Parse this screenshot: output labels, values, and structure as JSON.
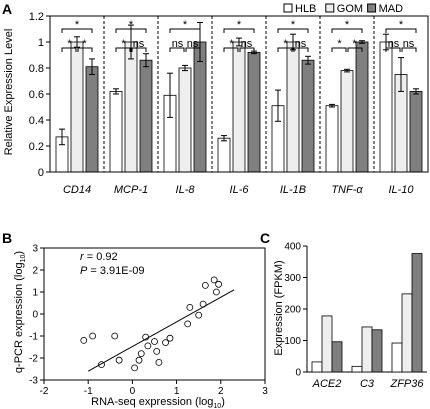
{
  "panels": [
    {
      "label": "A",
      "chart_data": {
        "type": "bar",
        "ylabel": "Relative Expression Level",
        "ylim": [
          0,
          1.2
        ],
        "yticks": [
          "0",
          "0.2",
          "0.4",
          "0.6",
          "0.8",
          "1",
          "1.2"
        ],
        "categories": [
          "CD14",
          "MCP-1",
          "IL-8",
          "IL-6",
          "IL-1B",
          "TNF-α",
          "IL-10"
        ],
        "series": [
          {
            "name": "HLB",
            "color": "#ffffff",
            "values": [
              0.27,
              0.62,
              0.59,
              0.26,
              0.51,
              0.51,
              1.0
            ],
            "errors": [
              0.06,
              0.02,
              0.17,
              0.02,
              0.12,
              0.01,
              0.06
            ]
          },
          {
            "name": "GOM",
            "color": "#eeeeee",
            "values": [
              1.0,
              1.0,
              0.8,
              1.0,
              1.0,
              0.78,
              0.75
            ],
            "errors": [
              0.04,
              0.13,
              0.02,
              0.03,
              0.06,
              0.01,
              0.13
            ]
          },
          {
            "name": "MAD",
            "color": "#7f7f7f",
            "values": [
              0.81,
              0.86,
              1.0,
              0.92,
              0.86,
              1.0,
              0.62
            ],
            "errors": [
              0.06,
              0.05,
              0.15,
              0.01,
              0.03,
              0.01,
              0.02
            ]
          }
        ],
        "legend": "top-right",
        "significance": [
          {
            "top": "*",
            "left": "*",
            "right": "*"
          },
          {
            "top": "*",
            "left": "*",
            "right": "ns"
          },
          {
            "top": "*",
            "left": "ns",
            "right": "ns"
          },
          {
            "top": "*",
            "left": "*",
            "right": "ns"
          },
          {
            "top": "*",
            "left": "*",
            "right": "ns"
          },
          {
            "top": "*",
            "left": "*",
            "right": "*"
          },
          {
            "top": "*",
            "left": "ns",
            "right": "ns"
          }
        ]
      }
    },
    {
      "label": "B",
      "chart_data": {
        "type": "scatter",
        "xlabel": "RNA-seq expression (log",
        "ylabel": "q-PCR expression (log",
        "log_base": "10",
        "xlim": [
          -2,
          3
        ],
        "ylim": [
          -3,
          3
        ],
        "xticks": [
          "-2",
          "-1",
          "0",
          "1",
          "2",
          "3"
        ],
        "yticks": [
          "-3",
          "-2",
          "-1",
          "0",
          "1",
          "2",
          "3"
        ],
        "annotation": {
          "r_label": "r",
          "r_value": " = 0.92",
          "p_label": "P",
          "p_value": " = 3.91E-09"
        },
        "trendline": {
          "x": [
            -1.0,
            2.3
          ],
          "y": [
            -2.6,
            1.1
          ]
        },
        "points": [
          {
            "x": -1.1,
            "y": -1.2
          },
          {
            "x": -0.9,
            "y": -1.0
          },
          {
            "x": -0.7,
            "y": -2.3
          },
          {
            "x": -0.4,
            "y": -1.0
          },
          {
            "x": -0.3,
            "y": -2.1
          },
          {
            "x": 0.05,
            "y": -2.45
          },
          {
            "x": 0.15,
            "y": -2.1
          },
          {
            "x": 0.2,
            "y": -1.8
          },
          {
            "x": 0.3,
            "y": -1.05
          },
          {
            "x": 0.35,
            "y": -1.45
          },
          {
            "x": 0.5,
            "y": -1.25
          },
          {
            "x": 0.55,
            "y": -1.7
          },
          {
            "x": 0.6,
            "y": -2.2
          },
          {
            "x": 0.75,
            "y": -1.3
          },
          {
            "x": 0.85,
            "y": -1.1
          },
          {
            "x": 1.25,
            "y": -0.45
          },
          {
            "x": 1.3,
            "y": 0.3
          },
          {
            "x": 1.5,
            "y": -0.05
          },
          {
            "x": 1.6,
            "y": 0.45
          },
          {
            "x": 1.65,
            "y": 1.3
          },
          {
            "x": 1.85,
            "y": 1.55
          },
          {
            "x": 1.9,
            "y": 1.0
          },
          {
            "x": 1.95,
            "y": 1.35
          }
        ]
      }
    },
    {
      "label": "C",
      "chart_data": {
        "type": "bar",
        "ylabel": "Expression (FPKM)",
        "ylim": [
          0,
          400
        ],
        "yticks": [
          "0",
          "100",
          "200",
          "300",
          "400"
        ],
        "categories": [
          "ACE2",
          "C3",
          "ZFP36"
        ],
        "series": [
          {
            "color": "#ffffff",
            "values": [
              32,
              18,
              92
            ]
          },
          {
            "color": "#eeeeee",
            "values": [
              178,
              143,
              248
            ]
          },
          {
            "color": "#7f7f7f",
            "values": [
              96,
              134,
              376
            ]
          }
        ]
      }
    }
  ]
}
